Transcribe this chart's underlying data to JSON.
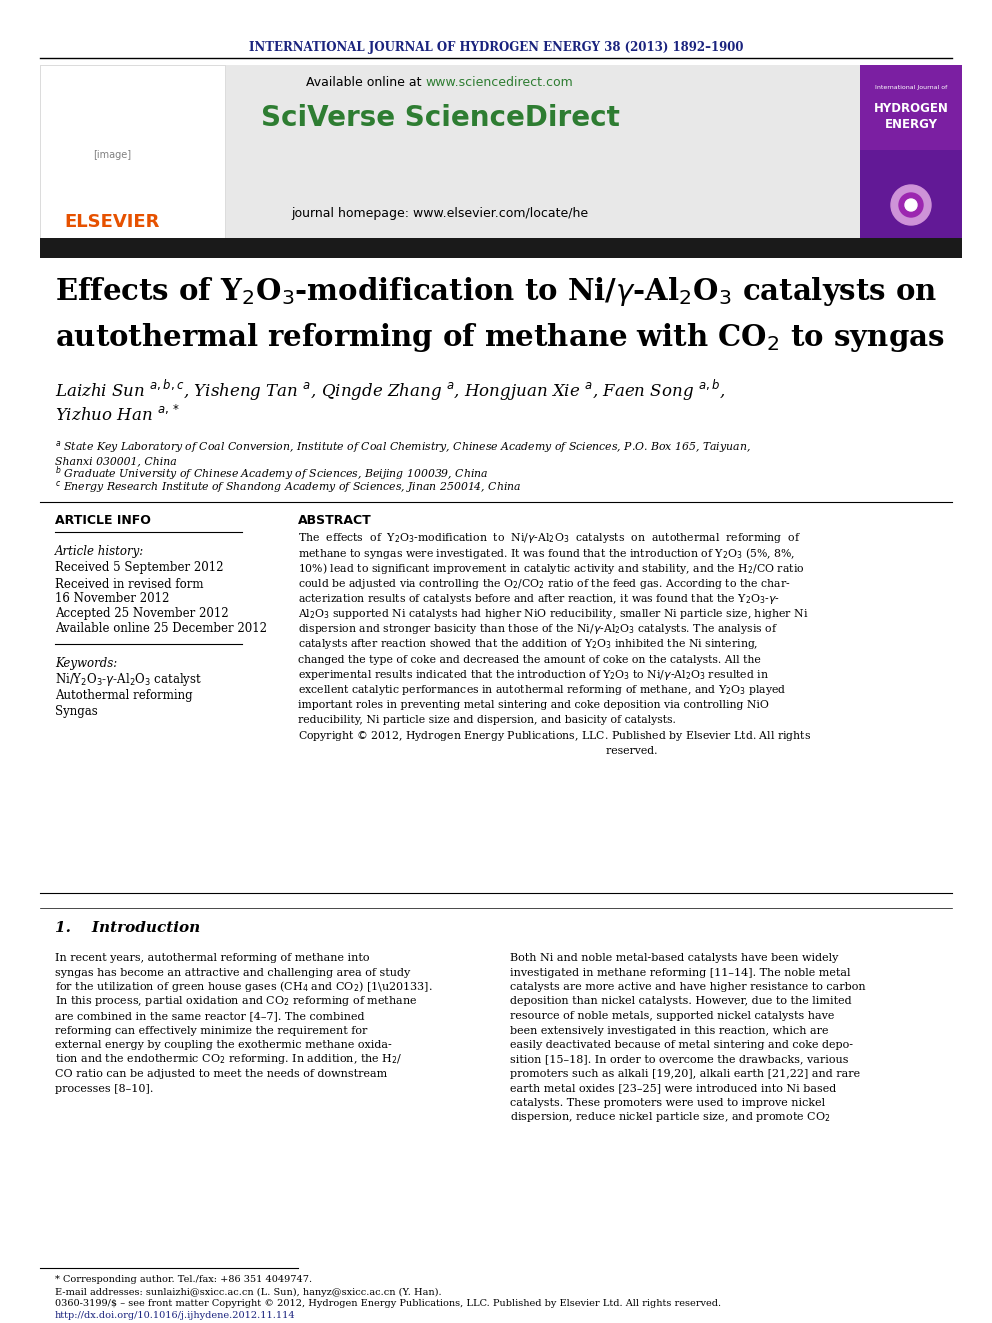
{
  "journal_header": "INTERNATIONAL JOURNAL OF HYDROGEN ENERGY 38 (2013) 1892–1900",
  "available_online": "Available online at ",
  "sciencedirect_url": "www.sciencedirect.com",
  "sciverse_text": "SciVerse ScienceDirect",
  "journal_homepage": "journal homepage: www.elsevier.com/locate/he",
  "article_info_header": "ARTICLE INFO",
  "abstract_header": "ABSTRACT",
  "article_history_label": "Article history:",
  "received1": "Received 5 September 2012",
  "received2": "Received in revised form",
  "received2b": "16 November 2012",
  "accepted": "Accepted 25 November 2012",
  "available": "Available online 25 December 2012",
  "keywords_label": "Keywords:",
  "keyword2": "Autothermal reforming",
  "keyword3": "Syngas",
  "footnote_star": "* Corresponding author. Tel./fax: +86 351 4049747.",
  "footnote_email": "E-mail addresses: sunlaizhi@sxicc.ac.cn (L. Sun), hanyz@sxicc.ac.cn (Y. Han).",
  "footnote_issn": "0360-3199/$ – see front matter Copyright © 2012, Hydrogen Energy Publications, LLC. Published by Elsevier Ltd. All rights reserved.",
  "footnote_doi": "http://dx.doi.org/10.1016/j.ijhydene.2012.11.114",
  "header_color": "#1a237e",
  "green_color": "#2e7d32",
  "orange_color": "#e65100",
  "dark_color": "#1a1a1a",
  "title_bar_color": "#1a1a1a",
  "bg_gray": "#e8e8e8",
  "bg_white": "#ffffff"
}
